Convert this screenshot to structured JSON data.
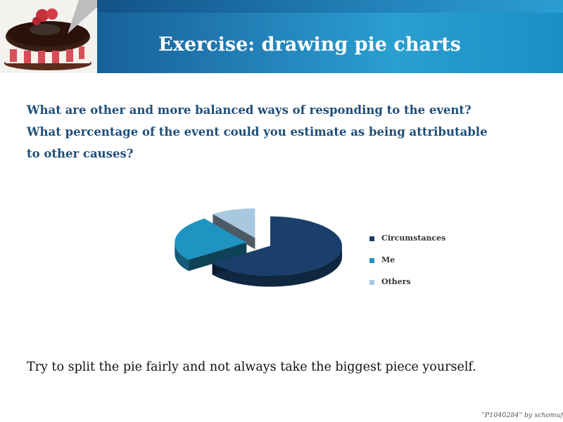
{
  "header": {
    "title": "Exercise: drawing pie charts"
  },
  "question": {
    "line1": "What are other and more balanced ways of responding to the event?",
    "line2": "What percentage of the event could you estimate as being attributable",
    "line3": "to other causes?"
  },
  "chart_data": {
    "type": "pie",
    "style": "3d-exploded",
    "labels": [
      "Circumstances",
      "Me",
      "Others"
    ],
    "values": [
      65,
      25,
      10
    ],
    "colors": [
      "#1a3f6b",
      "#1f93c2",
      "#a8c8e0"
    ],
    "legend_position": "right"
  },
  "footer": {
    "text": "Try to split the pie fairly and not always take the biggest piece yourself."
  },
  "credit": {
    "text": "\"P1040284\" by schomuf"
  }
}
